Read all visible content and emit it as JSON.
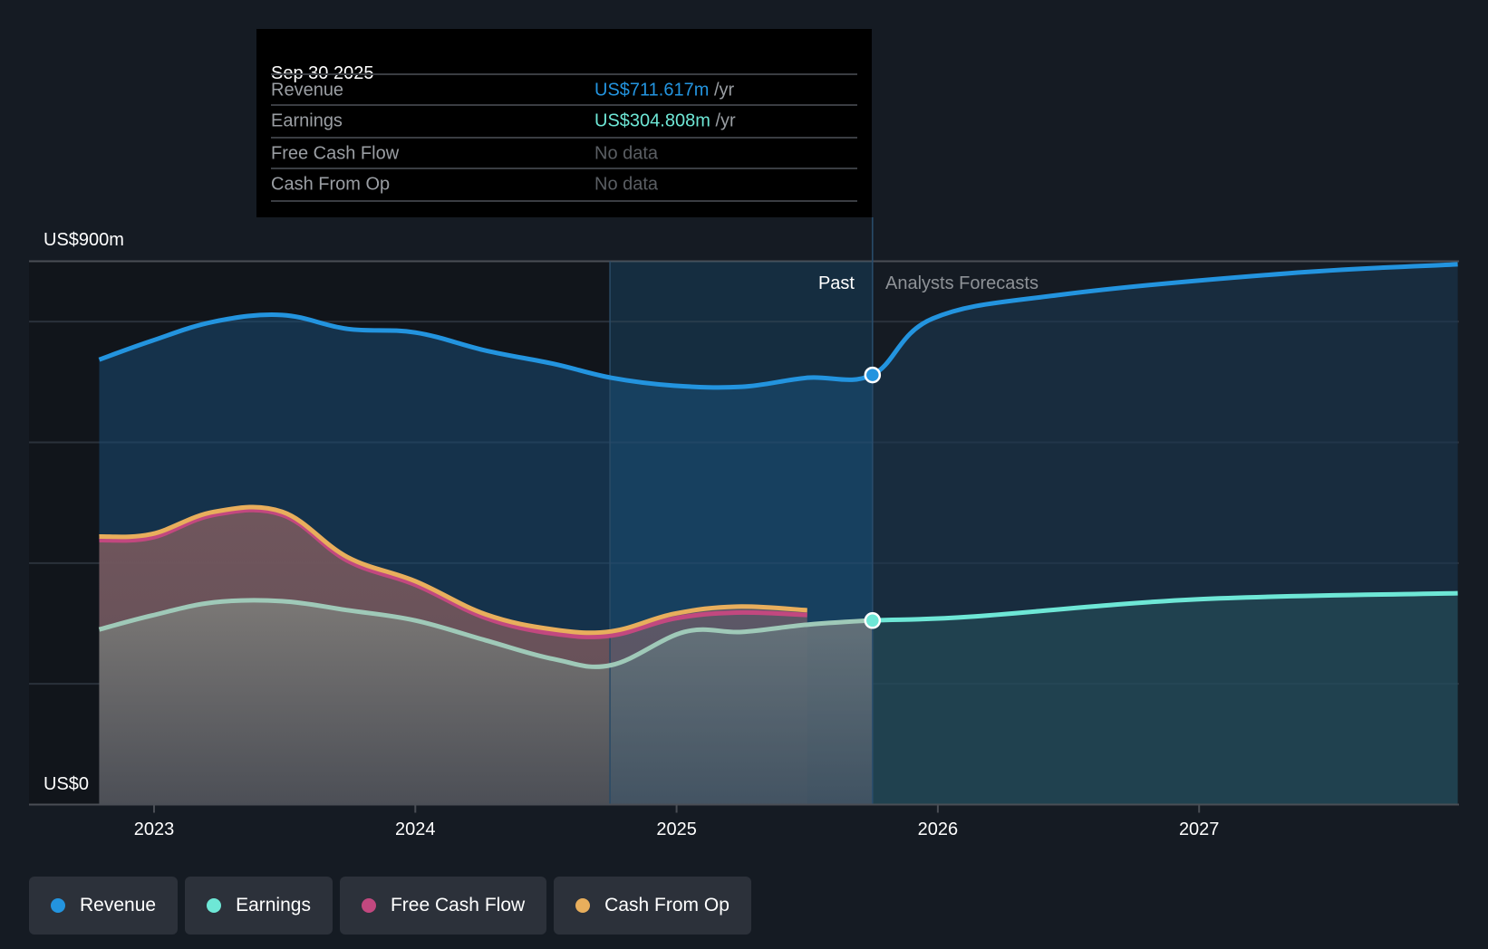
{
  "tooltip": {
    "date": "Sep 30 2025",
    "rows": [
      {
        "label": "Revenue",
        "value": "US$711.617m",
        "unit": "/yr",
        "color": "#2394df"
      },
      {
        "label": "Earnings",
        "value": "US$304.808m",
        "unit": "/yr",
        "color": "#6ee7d6"
      },
      {
        "label": "Free Cash Flow",
        "value": "No data",
        "unit": "",
        "color": "#5a5e63"
      },
      {
        "label": "Cash From Op",
        "value": "No data",
        "unit": "",
        "color": "#5a5e63"
      }
    ]
  },
  "labels": {
    "past": "Past",
    "forecast": "Analysts Forecasts"
  },
  "legend": [
    {
      "label": "Revenue",
      "color": "#2394df"
    },
    {
      "label": "Earnings",
      "color": "#6ee7d6"
    },
    {
      "label": "Free Cash Flow",
      "color": "#c2487f"
    },
    {
      "label": "Cash From Op",
      "color": "#e8ae5c"
    }
  ],
  "chart_data": {
    "type": "area",
    "title": "",
    "xlabel": "",
    "ylabel": "",
    "y_unit": "US$ millions",
    "ylim": [
      0,
      900
    ],
    "y_tick_labels": [
      {
        "value": 900,
        "label": "US$900m"
      },
      {
        "value": 0,
        "label": "US$0"
      }
    ],
    "gridlines": [
      0,
      200,
      400,
      600,
      800,
      900
    ],
    "xlim": [
      2022.79,
      2027.99
    ],
    "x_ticks": [
      {
        "value": 2023,
        "label": "2023"
      },
      {
        "value": 2024,
        "label": "2024"
      },
      {
        "value": 2025,
        "label": "2025"
      },
      {
        "value": 2026,
        "label": "2026"
      },
      {
        "value": 2027,
        "label": "2027"
      }
    ],
    "past_forecast_divider": 2025.75,
    "highlight_band_start": 2024.745,
    "legend_position": "bottom-left",
    "series": [
      {
        "name": "Revenue",
        "color": "#2394df",
        "x": [
          2022.79,
          2022.99,
          2023.23,
          2023.49,
          2023.74,
          2024.0,
          2024.27,
          2024.53,
          2024.75,
          2024.99,
          2025.25,
          2025.5,
          2025.75,
          2025.98,
          2026.48,
          2027.34,
          2027.99
        ],
        "y": [
          737,
          768,
          800,
          811,
          788,
          782,
          752,
          730,
          707,
          694,
          692,
          707,
          712,
          805,
          845,
          880,
          895
        ]
      },
      {
        "name": "Earnings",
        "color": "#6ee7d6",
        "x": [
          2022.79,
          2022.99,
          2023.23,
          2023.49,
          2023.74,
          2024.0,
          2024.27,
          2024.53,
          2024.75,
          2025.03,
          2025.25,
          2025.5,
          2025.75,
          2026.12,
          2026.99,
          2027.99
        ],
        "y": [
          290,
          313,
          335,
          337,
          322,
          305,
          272,
          241,
          231,
          286,
          286,
          298,
          305,
          311,
          340,
          350
        ]
      },
      {
        "name": "Free Cash Flow",
        "color": "#c2487f",
        "x": [
          2022.79,
          2022.99,
          2023.23,
          2023.49,
          2023.74,
          2024.0,
          2024.27,
          2024.53,
          2024.75,
          2024.99,
          2025.23,
          2025.5
        ],
        "y": [
          438,
          442,
          480,
          480,
          404,
          364,
          309,
          283,
          280,
          308,
          318,
          314
        ]
      },
      {
        "name": "Cash From Op",
        "color": "#e8ae5c",
        "x": [
          2022.79,
          2022.99,
          2023.23,
          2023.49,
          2023.74,
          2024.0,
          2024.27,
          2024.53,
          2024.75,
          2024.99,
          2025.23,
          2025.5
        ],
        "y": [
          444,
          448,
          485,
          485,
          410,
          370,
          315,
          290,
          287,
          316,
          328,
          322
        ]
      }
    ],
    "highlighted_points": [
      {
        "series": "Revenue",
        "x": 2025.75,
        "y": 711.617
      },
      {
        "series": "Earnings",
        "x": 2025.75,
        "y": 304.808
      }
    ]
  }
}
